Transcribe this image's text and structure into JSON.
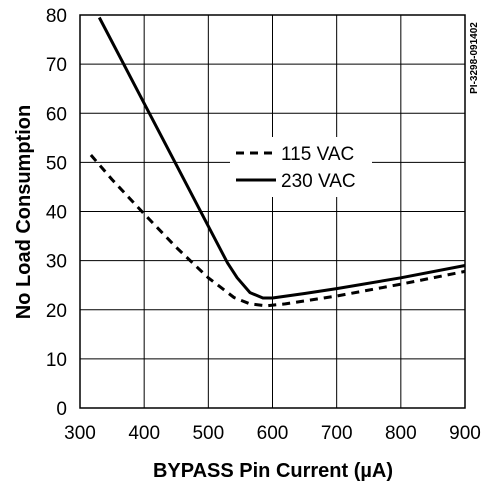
{
  "figure_id": "PI-3298-091402",
  "chart_data": {
    "type": "line",
    "title": "",
    "xlabel": "BYPASS Pin Current (µA)",
    "ylabel": "No Load Consumption",
    "xlim": [
      300,
      900
    ],
    "ylim": [
      0,
      80
    ],
    "x_ticks": [
      300,
      400,
      500,
      600,
      700,
      800,
      900
    ],
    "y_ticks": [
      0,
      10,
      20,
      30,
      40,
      50,
      60,
      70,
      80
    ],
    "grid": true,
    "legend_position": "center",
    "series": [
      {
        "name": "115 VAC",
        "style": "dashed",
        "color": "#000000",
        "points": [
          [
            317,
            51.5
          ],
          [
            350,
            46.5
          ],
          [
            400,
            39.5
          ],
          [
            450,
            32.7
          ],
          [
            500,
            26.5
          ],
          [
            540,
            22.5
          ],
          [
            565,
            21.2
          ],
          [
            590,
            20.8
          ],
          [
            620,
            21.2
          ],
          [
            700,
            22.8
          ],
          [
            800,
            25.2
          ],
          [
            900,
            27.8
          ]
        ]
      },
      {
        "name": "230 VAC",
        "style": "solid",
        "color": "#000000",
        "points": [
          [
            330,
            79.5
          ],
          [
            400,
            62.0
          ],
          [
            450,
            49.5
          ],
          [
            500,
            37.0
          ],
          [
            530,
            29.5
          ],
          [
            545,
            26.5
          ],
          [
            565,
            23.5
          ],
          [
            585,
            22.4
          ],
          [
            600,
            22.4
          ],
          [
            650,
            23.3
          ],
          [
            700,
            24.3
          ],
          [
            800,
            26.5
          ],
          [
            900,
            29.0
          ]
        ]
      }
    ]
  }
}
